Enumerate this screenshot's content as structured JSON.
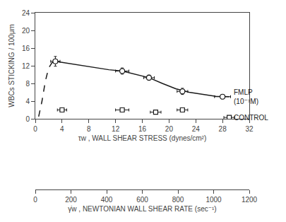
{
  "chart_data": {
    "type": "line",
    "xlabel": "τw , WALL SHEAR STRESS (dynes/cm²)",
    "ylabel": "WBCs STICKING / 100μm",
    "x2label": "γ̇w , NEWTONIAN WALL SHEAR RATE (sec⁻¹)",
    "xlim": [
      0,
      32
    ],
    "xticks": [
      0,
      4,
      8,
      12,
      16,
      20,
      24,
      28,
      32
    ],
    "ylim": [
      0,
      24
    ],
    "yticks": [
      0,
      4,
      8,
      12,
      16,
      20,
      24
    ],
    "x2lim": [
      0,
      1200
    ],
    "x2ticks": [
      0,
      200,
      400,
      600,
      800,
      1000,
      1200
    ],
    "grid": false,
    "series": [
      {
        "type": "line",
        "line_style": "dashed",
        "color": "#1a1a1a",
        "x": [
          0.5,
          1.0,
          1.5,
          2.0,
          2.5,
          3.0
        ],
        "values": [
          0.5,
          4.0,
          8.5,
          11.5,
          12.7,
          13.0
        ]
      },
      {
        "type": "line",
        "line_style": "solid",
        "color": "#1a1a1a",
        "x": [
          3.0,
          5.0,
          7.0,
          9.0,
          11.0,
          13.0,
          15.0,
          17.0,
          19.0,
          21.0,
          23.0,
          25.0,
          27.0,
          29.0
        ],
        "values": [
          13.0,
          12.5,
          12.0,
          11.5,
          11.1,
          10.8,
          10.1,
          9.3,
          8.0,
          6.8,
          6.0,
          5.5,
          5.1,
          5.0
        ]
      },
      {
        "type": "scatter",
        "marker": "circle",
        "color": "#1a1a1a",
        "x": [
          3.0,
          13.0,
          17.0,
          22.0,
          28.0
        ],
        "values": [
          13.0,
          10.8,
          9.3,
          6.2,
          5.0
        ],
        "xerr": [
          0.7,
          1.0,
          0.8,
          0.8,
          1.2
        ],
        "yerr": [
          1.1,
          0.7,
          0.6,
          0.7,
          0.5
        ]
      },
      {
        "type": "scatter",
        "marker": "square",
        "color": "#1a1a1a",
        "x": [
          4.0,
          13.0,
          18.0,
          22.0,
          29.0
        ],
        "values": [
          2.0,
          2.0,
          1.5,
          2.0,
          0.3
        ],
        "xerr": [
          0.7,
          1.0,
          0.8,
          0.8,
          0.8
        ],
        "yerr": [
          0.4,
          0.3,
          0.4,
          0.3,
          0.1
        ]
      }
    ],
    "annotations": [
      {
        "text": "FMLP\n(10⁻⁷M)",
        "x": 29.5,
        "y": 5.0,
        "color": "#1a1a1a"
      },
      {
        "text": "CONTROL",
        "x": 29.5,
        "y": 0.3,
        "color": "#1a1a1a"
      }
    ]
  }
}
